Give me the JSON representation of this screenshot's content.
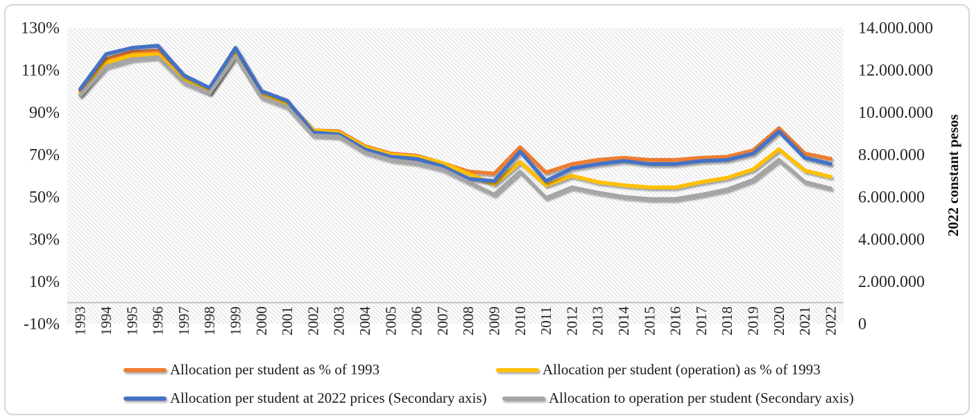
{
  "chart_data": {
    "type": "line",
    "categories": [
      "1993",
      "1994",
      "1995",
      "1996",
      "1997",
      "1998",
      "1999",
      "2000",
      "2001",
      "2002",
      "2003",
      "2004",
      "2005",
      "2006",
      "2007",
      "2008",
      "2009",
      "2010",
      "2011",
      "2012",
      "2013",
      "2014",
      "2015",
      "2016",
      "2017",
      "2018",
      "2019",
      "2020",
      "2021",
      "2022"
    ],
    "series": [
      {
        "name": "Allocation per student as % of 1993",
        "color": "#ED7D31",
        "axis": "primary",
        "values": [
          100,
          115,
          118.5,
          119,
          106.5,
          100,
          118.5,
          99,
          94.5,
          81.5,
          81,
          74,
          70.5,
          69.5,
          66,
          62,
          61,
          73.5,
          61.5,
          65.5,
          67.5,
          68.5,
          67.5,
          67.5,
          68.5,
          69,
          72,
          82.5,
          70.5,
          68
        ]
      },
      {
        "name": "Allocation per student (operation) as % of 1993",
        "color": "#FFC000",
        "axis": "primary",
        "values": [
          98.5,
          113.5,
          117,
          117.5,
          105.5,
          99.5,
          118,
          98.5,
          94,
          81.5,
          80.5,
          73.5,
          70,
          69,
          66,
          61,
          56,
          66.5,
          55.5,
          60,
          57,
          55.5,
          54.5,
          54.5,
          57,
          59,
          63,
          72.5,
          62.5,
          59.5
        ]
      },
      {
        "name": "Allocation per student at 2022 prices (Secondary axis)",
        "color": "#4472C4",
        "axis": "secondary",
        "values": [
          11100000,
          12750000,
          13050000,
          13150000,
          11750000,
          11150000,
          13050000,
          11000000,
          10550000,
          9050000,
          8950000,
          8250000,
          7900000,
          7800000,
          7450000,
          6850000,
          6750000,
          8150000,
          6750000,
          7350000,
          7550000,
          7700000,
          7550000,
          7550000,
          7700000,
          7750000,
          8050000,
          9100000,
          7850000,
          7550000
        ]
      },
      {
        "name": "Allocation to operation per student (Secondary axis)",
        "color": "#A5A5A5",
        "axis": "secondary",
        "values": [
          10800000,
          12150000,
          12500000,
          12600000,
          11400000,
          10900000,
          12650000,
          10700000,
          10250000,
          8900000,
          8850000,
          8100000,
          7750000,
          7600000,
          7300000,
          6700000,
          6100000,
          7200000,
          5950000,
          6450000,
          6200000,
          6000000,
          5900000,
          5900000,
          6100000,
          6350000,
          6800000,
          7750000,
          6700000,
          6400000
        ]
      }
    ],
    "axes": {
      "left": {
        "min": -10,
        "max": 130,
        "ticks": [
          "130%",
          "110%",
          "90%",
          "70%",
          "50%",
          "30%",
          "10%",
          "-10%"
        ]
      },
      "right": {
        "min": 0,
        "max": 14000000,
        "ticks": [
          "14.000.000",
          "12.000.000",
          "10.000.000",
          "8.000.000",
          "6.000.000",
          "4.000.000",
          "2.000.000",
          "0"
        ],
        "title": "2022 constant pesos"
      }
    },
    "grid": false,
    "plot_background": "light-diagonal-hatch",
    "legend_position": "bottom",
    "title": "",
    "xlabel": ""
  }
}
